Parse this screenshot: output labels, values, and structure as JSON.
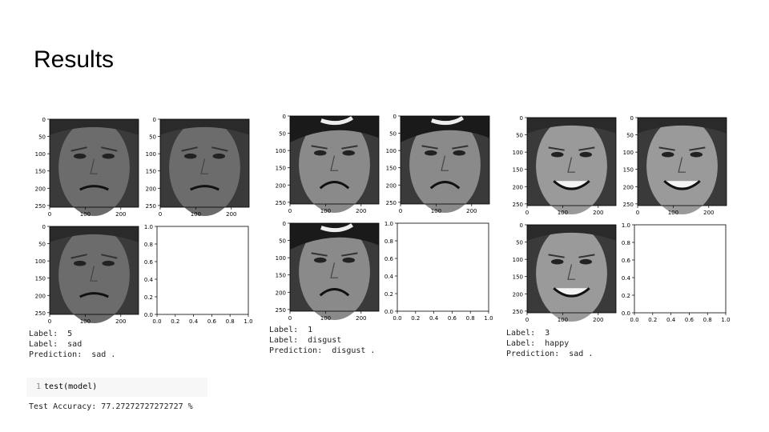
{
  "slide": {
    "title": "Results"
  },
  "ticks": {
    "img_y": [
      "0",
      "50",
      "100",
      "150",
      "200",
      "250"
    ],
    "img_x": [
      "0",
      "100",
      "200"
    ],
    "empty": [
      "0.0",
      "0.2",
      "0.4",
      "0.6",
      "0.8",
      "1.0"
    ]
  },
  "groups": [
    {
      "id": "sad",
      "caption": {
        "line1": "Label:  5",
        "line2": "Label:  sad",
        "line3": "Prediction:  sad ."
      },
      "tone": "#6c6c6c",
      "expression": "sad"
    },
    {
      "id": "disgust",
      "caption": {
        "line1": "Label:  1",
        "line2": "Label:  disgust",
        "line3": "Prediction:  disgust ."
      },
      "tone": "#8a8a8a",
      "expression": "disgust"
    },
    {
      "id": "happy",
      "caption": {
        "line1": "Label:  3",
        "line2": "Label:  happy",
        "line3": "Prediction:  sad ."
      },
      "tone": "#9a9a9a",
      "expression": "happy"
    }
  ],
  "code": {
    "line_number": "1",
    "text": "test(model)"
  },
  "output": {
    "accuracy_text": "Test Accuracy: 77.27272727272727 %"
  }
}
